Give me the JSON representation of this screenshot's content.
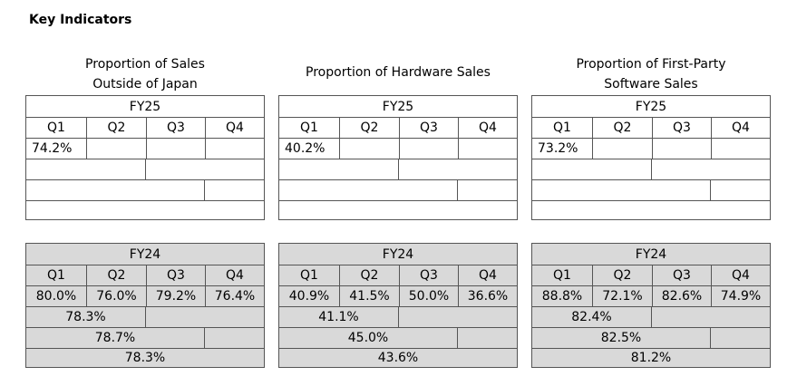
{
  "heading": "Key Indicators",
  "panels": [
    {
      "title_lines": [
        "Proportion of Sales",
        "Outside of Japan"
      ],
      "fy25": {
        "year": "FY25",
        "quarters": [
          "Q1",
          "Q2",
          "Q3",
          "Q4"
        ],
        "values": [
          "74.2%",
          "",
          "",
          ""
        ],
        "half": "",
        "three_quarters": "",
        "full": ""
      },
      "fy24": {
        "year": "FY24",
        "quarters": [
          "Q1",
          "Q2",
          "Q3",
          "Q4"
        ],
        "values": [
          "80.0%",
          "76.0%",
          "79.2%",
          "76.4%"
        ],
        "half": "78.3%",
        "three_quarters": "78.7%",
        "full": "78.3%"
      }
    },
    {
      "title_lines": [
        "Proportion of Hardware Sales"
      ],
      "fy25": {
        "year": "FY25",
        "quarters": [
          "Q1",
          "Q2",
          "Q3",
          "Q4"
        ],
        "values": [
          "40.2%",
          "",
          "",
          ""
        ],
        "half": "",
        "three_quarters": "",
        "full": ""
      },
      "fy24": {
        "year": "FY24",
        "quarters": [
          "Q1",
          "Q2",
          "Q3",
          "Q4"
        ],
        "values": [
          "40.9%",
          "41.5%",
          "50.0%",
          "36.6%"
        ],
        "half": "41.1%",
        "three_quarters": "45.0%",
        "full": "43.6%"
      }
    },
    {
      "title_lines": [
        "Proportion of First-Party",
        "Software Sales"
      ],
      "fy25": {
        "year": "FY25",
        "quarters": [
          "Q1",
          "Q2",
          "Q3",
          "Q4"
        ],
        "values": [
          "73.2%",
          "",
          "",
          ""
        ],
        "half": "",
        "three_quarters": "",
        "full": ""
      },
      "fy24": {
        "year": "FY24",
        "quarters": [
          "Q1",
          "Q2",
          "Q3",
          "Q4"
        ],
        "values": [
          "88.8%",
          "72.1%",
          "82.6%",
          "74.9%"
        ],
        "half": "82.4%",
        "three_quarters": "82.5%",
        "full": "81.2%"
      }
    }
  ]
}
